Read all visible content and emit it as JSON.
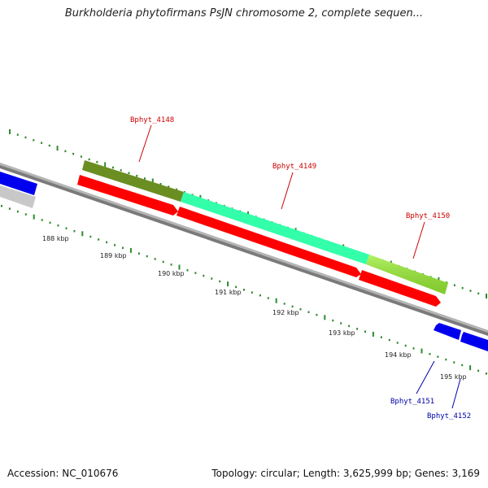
{
  "title": "Burkholderia phytofirmans PsJN chromosome 2, complete sequen...",
  "footer": {
    "accession": "Accession: NC_010676",
    "summary": "Topology: circular; Length: 3,625,999 bp; Genes: 3,169"
  },
  "colors": {
    "backbone": "#888888",
    "tick": "#2e8b2e",
    "gene_forward": "#ff0000",
    "gene_reverse": "#0000ee",
    "gene_label_top": "#cc0000",
    "gene_label_bottom": "#0000aa",
    "cds_4148": "#6b8e23",
    "cds_4149": "#33ffaa",
    "cds_4150": "#99ee33",
    "cds_other": "#c8c8c8"
  },
  "scale_labels": [
    "188 kbp",
    "189 kbp",
    "190 kbp",
    "191 kbp",
    "192 kbp",
    "193 kbp",
    "194 kbp",
    "195 kbp"
  ],
  "genes_top": [
    {
      "name": "Bphyt_4148",
      "color_key": "cds_4148"
    },
    {
      "name": "Bphyt_4149",
      "color_key": "cds_4149"
    },
    {
      "name": "Bphyt_4150",
      "color_key": "cds_4150"
    }
  ],
  "genes_bottom": [
    {
      "name": "Bphyt_4151"
    },
    {
      "name": "Bphyt_4152"
    }
  ]
}
